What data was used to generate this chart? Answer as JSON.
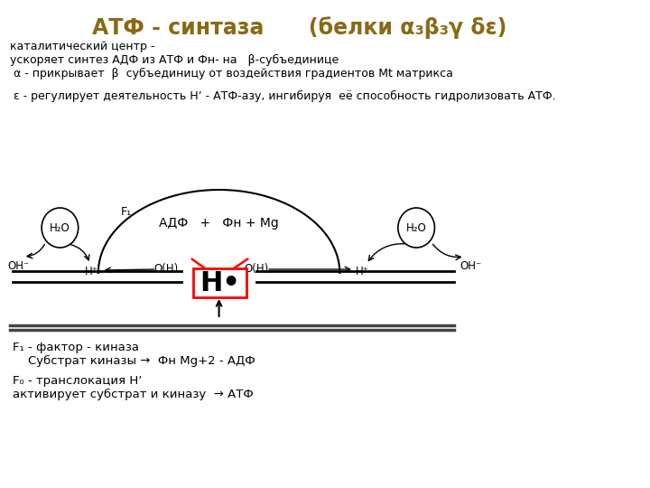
{
  "title": "АТФ - синтаза      (белки α₃β₃γ δε)",
  "title_color": "#8B6914",
  "bg_color": "#ffffff",
  "text_line1": "каталитический центр -",
  "text_line2": "ускоряет синтез АДФ из АТФ и Фн- на   β-субъединице",
  "text_line3": " α - прикрывает  β  субъединицу от воздействия градиентов Mt матрикса",
  "text_line4": " ε - регулирует деятельность Нʼ - АТФ-азу, ингибируя  её способность гидролизовать АТФ.",
  "bottom_line1": "F₁ - фактор - киназа",
  "bottom_line2": "    Субстрат киназы →  Фн Mg+2 - АДФ",
  "bottom_line3": "F₀ - транслокация Нʼ",
  "bottom_line4": "активирует субстрат и киназу  → АТФ"
}
